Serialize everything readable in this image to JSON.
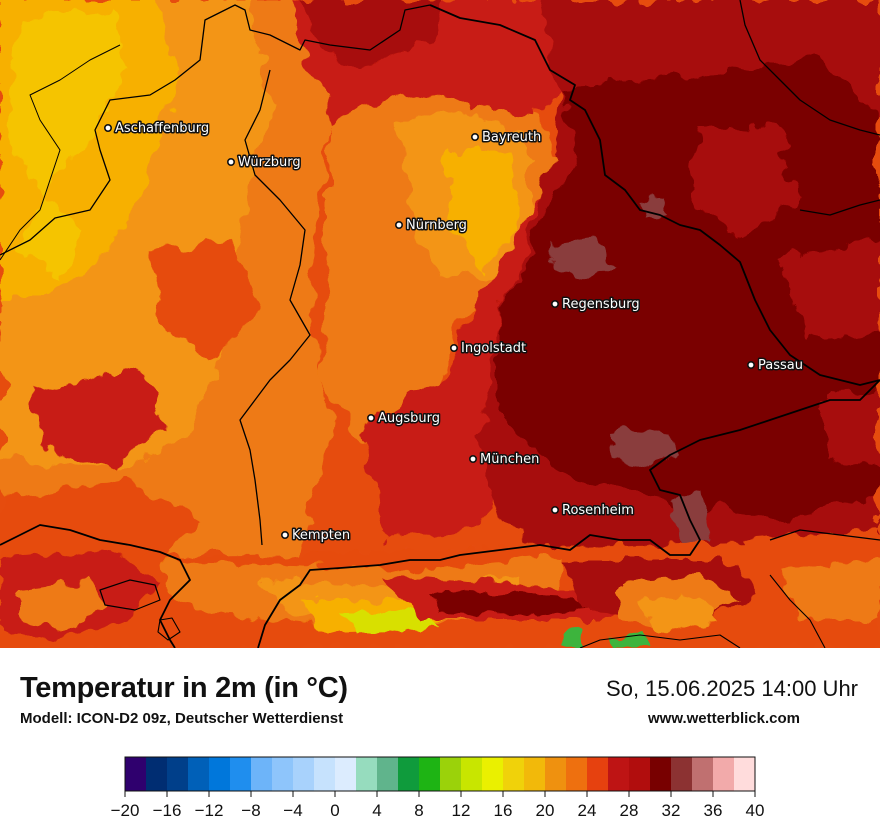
{
  "map": {
    "colors": {
      "c16": "#f5c400",
      "c20": "#f7b000",
      "c22": "#f39515",
      "c24": "#ee7a12",
      "c26": "#e64c0e",
      "c28": "#c81d12",
      "c30": "#a70c0c",
      "c32": "#7a0000",
      "warm_gray": "#8a3d3d",
      "alpine_yellow": "#d8e000",
      "alpine_green": "#3cb43c"
    },
    "cities": [
      {
        "name": "Aschaffenburg"
      },
      {
        "name": "Würzburg"
      },
      {
        "name": "Bayreuth"
      },
      {
        "name": "Nürnberg"
      },
      {
        "name": "Regensburg"
      },
      {
        "name": "Ingolstadt"
      },
      {
        "name": "Passau"
      },
      {
        "name": "Augsburg"
      },
      {
        "name": "München"
      },
      {
        "name": "Rosenheim"
      },
      {
        "name": "Kempten"
      }
    ]
  },
  "footer": {
    "title": "Temperatur in 2m (in °C)",
    "subtitle": "Modell: ICON-D2 09z, Deutscher Wetterdienst",
    "datetime": "So, 15.06.2025 14:00 Uhr",
    "website": "www.wetterblick.com"
  },
  "scale": {
    "colors": [
      "#2f006e",
      "#002d72",
      "#003f8a",
      "#0060b8",
      "#0077db",
      "#1f8eee",
      "#6db4f9",
      "#8ec5fb",
      "#a8d2fc",
      "#c6e2fd",
      "#dcecfe",
      "#96dcbe",
      "#60b48c",
      "#0f9b3c",
      "#1eb414",
      "#9bd20a",
      "#c8e600",
      "#eaf000",
      "#f0d20a",
      "#f2b90a",
      "#ef910f",
      "#ee700f",
      "#e6410f",
      "#be1414",
      "#b10d0d",
      "#780000",
      "#8c3232",
      "#c07070",
      "#f2aaaa",
      "#ffdcdc"
    ],
    "ticks": [
      "−20",
      "−16",
      "−12",
      "−8",
      "−4",
      "0",
      "4",
      "8",
      "12",
      "16",
      "20",
      "24",
      "28",
      "32",
      "36",
      "40"
    ]
  }
}
